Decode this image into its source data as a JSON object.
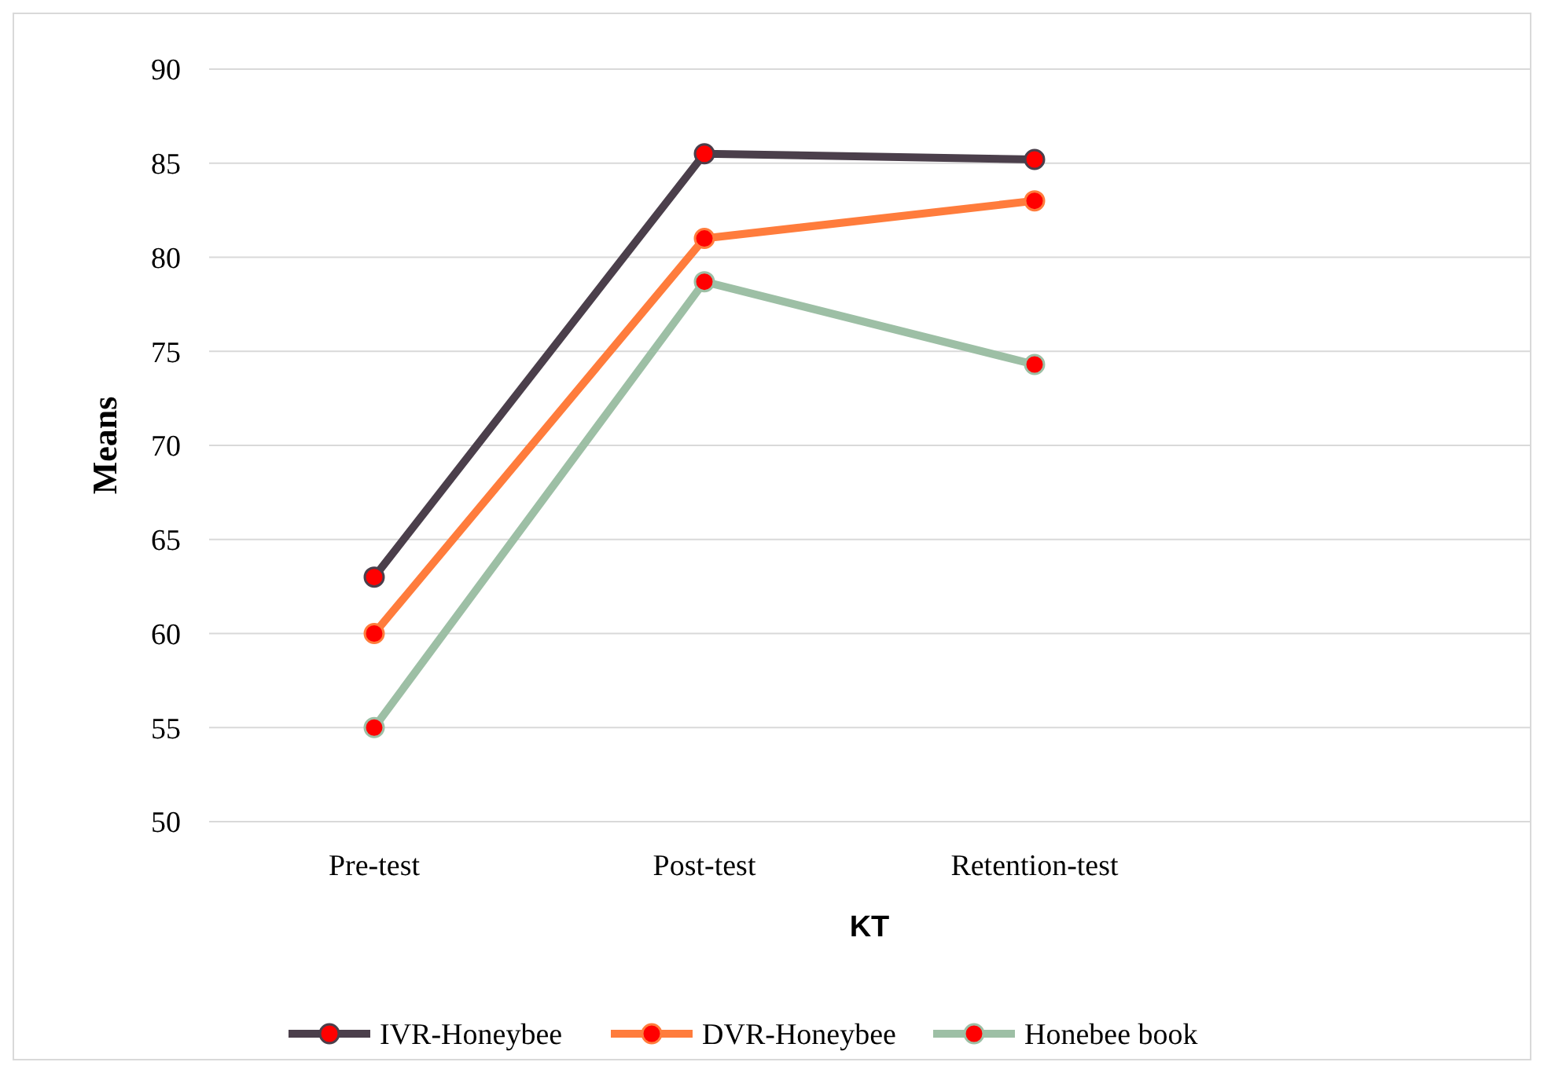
{
  "chart_data": {
    "type": "line",
    "xlabel": "KT",
    "ylabel": "Means",
    "categories": [
      "Pre-test",
      "Post-test",
      "Retention-test",
      null
    ],
    "series": [
      {
        "name": "IVR-Honeybee",
        "color": "#4b3f4b",
        "values": [
          63,
          85.5,
          85.2,
          null
        ]
      },
      {
        "name": "DVR-Honeybee",
        "color": "#ff7c3c",
        "values": [
          60,
          81,
          83,
          null
        ]
      },
      {
        "name": "Honebee book",
        "color": "#9dbfa5",
        "values": [
          55,
          78.7,
          74.3,
          null
        ]
      }
    ],
    "ylim": [
      50,
      90
    ],
    "yticks": [
      50,
      55,
      60,
      65,
      70,
      75,
      80,
      85,
      90
    ],
    "grid": "y",
    "legend": "bottom",
    "marker": "circle",
    "line_style": "solid"
  }
}
